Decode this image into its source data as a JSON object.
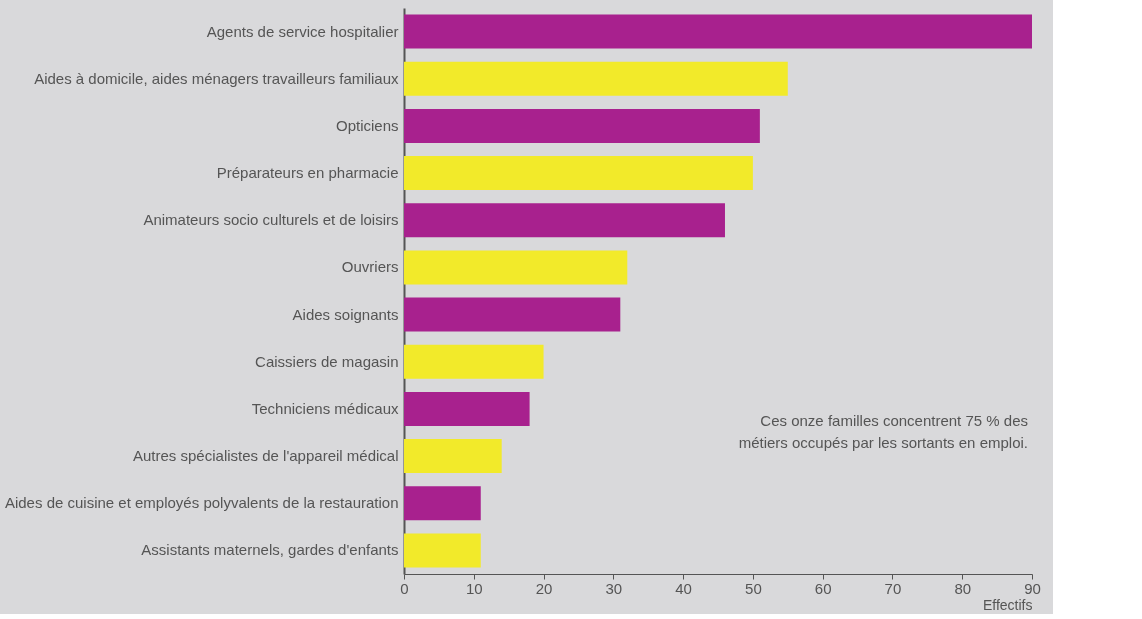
{
  "chart_data": {
    "type": "bar",
    "orientation": "horizontal",
    "xlabel": "Effectifs",
    "categories": [
      "Agents de service hospitalier",
      "Aides à domicile, aides ménagers travailleurs familiaux",
      "Opticiens",
      "Préparateurs en pharmacie",
      "Animateurs socio culturels et de loisirs",
      "Ouvriers",
      "Aides soignants",
      "Caissiers de magasin",
      "Techniciens médicaux",
      "Autres spécialistes de l'appareil médical",
      "Aides de cuisine et employés polyvalents de la restauration",
      "Assistants maternels, gardes d'enfants"
    ],
    "values": [
      90,
      55,
      51,
      50,
      46,
      32,
      31,
      20,
      18,
      14,
      11,
      11
    ],
    "colors": [
      "#a8218e",
      "#f2ea2a",
      "#a8218e",
      "#f2ea2a",
      "#a8218e",
      "#f2ea2a",
      "#a8218e",
      "#f2ea2a",
      "#a8218e",
      "#f2ea2a",
      "#a8218e",
      "#f2ea2a"
    ],
    "xlim": [
      0,
      90
    ],
    "xticks": [
      0,
      10,
      20,
      30,
      40,
      50,
      60,
      70,
      80,
      90
    ],
    "annotations": [
      "Ces onze familles concentrent 75 % des métiers occupés par les sortants en emploi."
    ]
  }
}
